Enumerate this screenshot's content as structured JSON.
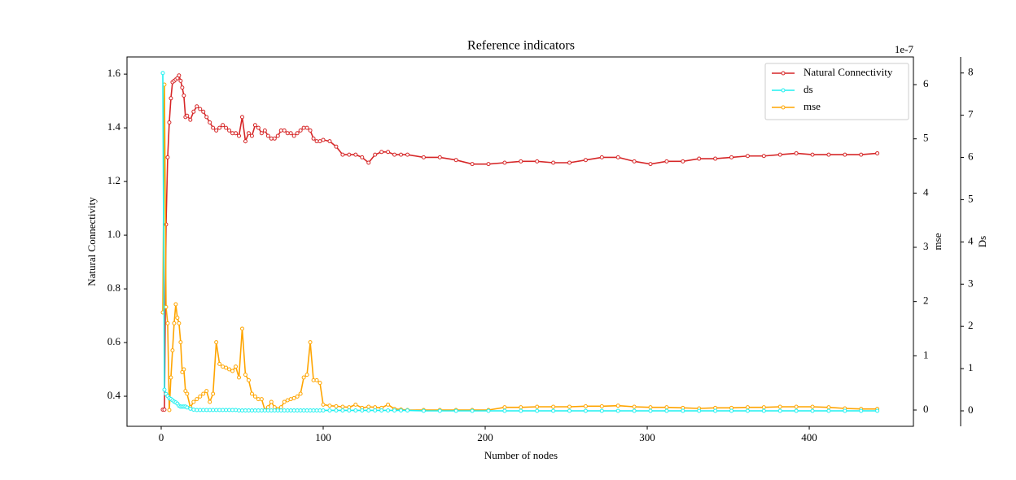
{
  "chart_data": {
    "type": "line",
    "title": "Reference indicators",
    "x_label": "Number of nodes",
    "y_label": "Natural Connectivity",
    "y2_label": "mse",
    "y3_label": "Ds",
    "y2_offset_label": "1e-7",
    "x": [
      1,
      2,
      3,
      4,
      5,
      6,
      7,
      8,
      9,
      10,
      11,
      12,
      13,
      14,
      15,
      16,
      18,
      20,
      22,
      24,
      26,
      28,
      30,
      32,
      34,
      36,
      38,
      40,
      42,
      44,
      46,
      48,
      50,
      52,
      54,
      56,
      58,
      60,
      62,
      64,
      66,
      68,
      70,
      72,
      74,
      76,
      78,
      80,
      82,
      84,
      86,
      88,
      90,
      92,
      94,
      96,
      98,
      100,
      104,
      108,
      112,
      116,
      120,
      124,
      128,
      132,
      136,
      140,
      144,
      148,
      152,
      162,
      172,
      182,
      192,
      202,
      212,
      222,
      232,
      242,
      252,
      262,
      272,
      282,
      292,
      302,
      312,
      322,
      332,
      342,
      352,
      362,
      372,
      382,
      392,
      402,
      412,
      422,
      432,
      442
    ],
    "series": [
      {
        "name": "Natural Connectivity",
        "color": "#d62728",
        "axis": "y",
        "values": [
          0.35,
          0.35,
          1.04,
          1.29,
          1.42,
          1.51,
          1.57,
          1.575,
          1.58,
          1.585,
          1.595,
          1.575,
          1.55,
          1.52,
          1.44,
          1.445,
          1.43,
          1.46,
          1.48,
          1.47,
          1.46,
          1.44,
          1.42,
          1.4,
          1.39,
          1.4,
          1.41,
          1.4,
          1.39,
          1.38,
          1.38,
          1.37,
          1.44,
          1.35,
          1.38,
          1.37,
          1.41,
          1.4,
          1.38,
          1.39,
          1.37,
          1.36,
          1.36,
          1.37,
          1.39,
          1.39,
          1.38,
          1.38,
          1.37,
          1.38,
          1.39,
          1.4,
          1.4,
          1.39,
          1.36,
          1.35,
          1.35,
          1.355,
          1.35,
          1.33,
          1.3,
          1.3,
          1.3,
          1.29,
          1.27,
          1.3,
          1.31,
          1.31,
          1.3,
          1.3,
          1.3,
          1.29,
          1.29,
          1.28,
          1.265,
          1.265,
          1.27,
          1.275,
          1.275,
          1.27,
          1.27,
          1.28,
          1.29,
          1.29,
          1.275,
          1.265,
          1.275,
          1.275,
          1.285,
          1.285,
          1.29,
          1.295,
          1.295,
          1.3,
          1.305,
          1.3,
          1.3,
          1.3,
          1.3,
          1.305
        ]
      },
      {
        "name": "ds",
        "color": "#1ff0f0",
        "axis": "y3",
        "values": [
          8,
          0.5,
          0.4,
          0.35,
          0.3,
          0.28,
          0.25,
          0.22,
          0.2,
          0.17,
          0.12,
          0.1,
          0.1,
          0.1,
          0.1,
          0.08,
          0.05,
          0.03,
          0.02,
          0.02,
          0.02,
          0.02,
          0.02,
          0.02,
          0.02,
          0.02,
          0.02,
          0.02,
          0.02,
          0.02,
          0.02,
          0.01,
          0.01,
          0.01,
          0.01,
          0.01,
          0.01,
          0.01,
          0.01,
          0.01,
          0.01,
          0.01,
          0.01,
          0.01,
          0.01,
          0.01,
          0.01,
          0.01,
          0.01,
          0.01,
          0.01,
          0.01,
          0.01,
          0.01,
          0.01,
          0.01,
          0.01,
          0.01,
          0.01,
          0.01,
          0.01,
          0.01,
          0.01,
          0.01,
          0.01,
          0.01,
          0.01,
          0.01,
          0.01,
          0.01,
          0.01,
          0,
          0,
          0,
          0,
          0,
          0,
          0,
          0,
          0,
          0,
          0,
          0,
          0,
          0,
          0,
          0,
          0,
          0,
          0,
          0,
          0,
          0,
          0,
          0,
          0,
          0,
          0,
          0,
          0
        ]
      },
      {
        "name": "mse",
        "color": "#ffa500",
        "axis": "y2",
        "values": [
          1.8,
          6.0,
          1.9,
          1.6,
          0.0,
          0.6,
          1.1,
          1.6,
          1.95,
          1.7,
          1.6,
          1.25,
          0.7,
          0.75,
          0.35,
          0.3,
          0.05,
          0.15,
          0.2,
          0.25,
          0.3,
          0.35,
          0.15,
          0.3,
          1.25,
          0.85,
          0.8,
          0.78,
          0.75,
          0.72,
          0.8,
          0.6,
          1.5,
          0.65,
          0.55,
          0.3,
          0.25,
          0.2,
          0.2,
          0.0,
          0.05,
          0.15,
          0.05,
          0.02,
          0.05,
          0.15,
          0.18,
          0.2,
          0.22,
          0.25,
          0.3,
          0.6,
          0.65,
          1.25,
          0.55,
          0.55,
          0.5,
          0.1,
          0.08,
          0.07,
          0.06,
          0.05,
          0.1,
          0.04,
          0.06,
          0.05,
          0.04,
          0.1,
          0.02,
          0.01,
          0.0,
          0.0,
          0.0,
          0.0,
          0.0,
          0.0,
          0.05,
          0.05,
          0.06,
          0.06,
          0.06,
          0.07,
          0.07,
          0.08,
          0.06,
          0.05,
          0.05,
          0.04,
          0.03,
          0.04,
          0.04,
          0.05,
          0.05,
          0.06,
          0.06,
          0.06,
          0.05,
          0.03,
          0.02,
          0.02
        ]
      }
    ],
    "xlim": [
      -21.1,
      464.3
    ],
    "xticks": [
      0,
      100,
      200,
      300,
      400
    ],
    "ylim": [
      0.288,
      1.664
    ],
    "yticks": [
      0.4,
      0.6,
      0.8,
      {
        "value": 1,
        "label": "1.0"
      },
      1.2,
      1.4,
      1.6
    ],
    "y2lim": [
      -0.3,
      6.51
    ],
    "y2ticks": [
      0,
      1,
      2,
      3,
      4,
      5,
      6
    ],
    "y3lim": [
      -0.366,
      8.38
    ],
    "y3ticks": [
      0,
      1,
      2,
      3,
      4,
      5,
      6,
      7,
      8
    ],
    "legend": "upper right",
    "grid": false
  }
}
